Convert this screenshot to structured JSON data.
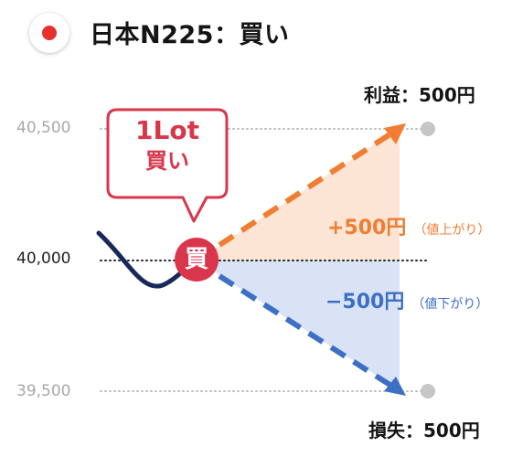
{
  "header": {
    "flag_icon": "japan-flag-icon",
    "title": "日本N225：買い"
  },
  "axis": {
    "top": "40,500",
    "mid": "40,000",
    "bottom": "39,500"
  },
  "callout": {
    "lot": "1Lot",
    "action": "買い"
  },
  "marker": {
    "label": "買"
  },
  "targets": {
    "profit": "利益：500円",
    "loss": "損失：500円"
  },
  "gain": {
    "amount": "+500円",
    "note": "（値上がり）"
  },
  "drop": {
    "amount": "−500円",
    "note": "（値下がり）"
  },
  "colors": {
    "gain": "#ef7d32",
    "loss": "#3d6fc5",
    "gain_fill": "#fde5d5",
    "loss_fill": "#d9e3f5",
    "price_line": "#17285a",
    "buy_marker": "#d9364c"
  }
}
